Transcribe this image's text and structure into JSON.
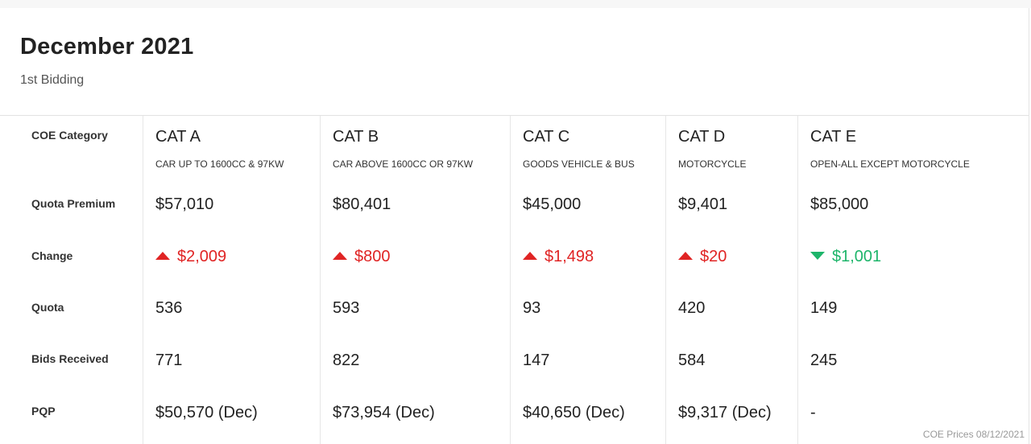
{
  "header": {
    "title": "December 2021",
    "subtitle": "1st Bidding"
  },
  "row_labels": [
    "COE Category",
    "Quota Premium",
    "Change",
    "Quota",
    "Bids Received",
    "PQP"
  ],
  "colors": {
    "increase": "#e02424",
    "decrease": "#1db56a"
  },
  "categories": [
    {
      "name": "CAT A",
      "desc": "CAR UP TO 1600CC & 97KW",
      "premium": "$57,010",
      "change": "$2,009",
      "direction": "up",
      "quota": "536",
      "bids": "771",
      "pqp": "$50,570 (Dec)"
    },
    {
      "name": "CAT B",
      "desc": "CAR ABOVE 1600CC OR 97KW",
      "premium": "$80,401",
      "change": "$800",
      "direction": "up",
      "quota": "593",
      "bids": "822",
      "pqp": "$73,954 (Dec)"
    },
    {
      "name": "CAT C",
      "desc": "GOODS VEHICLE & BUS",
      "premium": "$45,000",
      "change": "$1,498",
      "direction": "up",
      "quota": "93",
      "bids": "147",
      "pqp": "$40,650 (Dec)"
    },
    {
      "name": "CAT D",
      "desc": "MOTORCYCLE",
      "premium": "$9,401",
      "change": "$20",
      "direction": "up",
      "quota": "420",
      "bids": "584",
      "pqp": "$9,317 (Dec)"
    },
    {
      "name": "CAT E",
      "desc": "OPEN-ALL EXCEPT MOTORCYCLE",
      "premium": "$85,000",
      "change": "$1,001",
      "direction": "down",
      "quota": "149",
      "bids": "245",
      "pqp": "-"
    }
  ],
  "footer": "COE Prices 08/12/2021"
}
